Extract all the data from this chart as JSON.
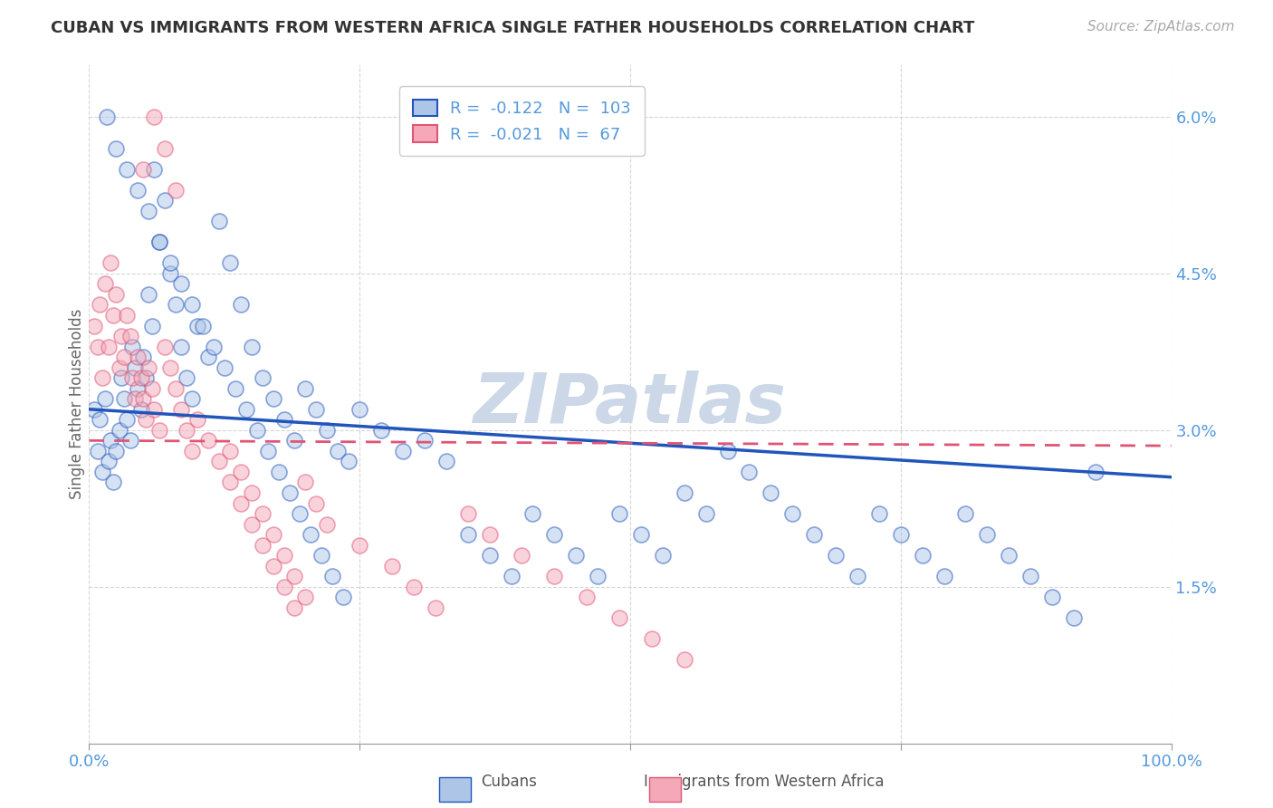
{
  "title": "CUBAN VS IMMIGRANTS FROM WESTERN AFRICA SINGLE FATHER HOUSEHOLDS CORRELATION CHART",
  "source": "Source: ZipAtlas.com",
  "ylabel": "Single Father Households",
  "legend_entries": [
    {
      "label": "Cubans",
      "R": -0.122,
      "N": 103,
      "color": "#adc6e8"
    },
    {
      "label": "Immigrants from Western Africa",
      "R": -0.021,
      "N": 67,
      "color": "#f4a8b8"
    }
  ],
  "xmin": 0.0,
  "xmax": 1.0,
  "ymin": 0.0,
  "ymax": 0.065,
  "yticks": [
    0.0,
    0.015,
    0.03,
    0.045,
    0.06
  ],
  "ytick_labels": [
    "",
    "1.5%",
    "3.0%",
    "4.5%",
    "6.0%"
  ],
  "xticks": [
    0.0,
    0.25,
    0.5,
    0.75,
    1.0
  ],
  "xtick_labels": [
    "0.0%",
    "",
    "",
    "",
    "100.0%"
  ],
  "blue_line_color": "#2255bb",
  "pink_line_color": "#e05575",
  "tick_color": "#5599dd",
  "watermark_text": "ZIPatlas",
  "watermark_color": "#ccd8e8",
  "background_color": "#ffffff",
  "grid_color": "#cccccc",
  "title_color": "#333333",
  "axis_label_color": "#666666",
  "cubans_x": [
    0.005,
    0.008,
    0.01,
    0.012,
    0.015,
    0.018,
    0.02,
    0.022,
    0.025,
    0.028,
    0.03,
    0.032,
    0.035,
    0.038,
    0.04,
    0.042,
    0.045,
    0.048,
    0.05,
    0.052,
    0.055,
    0.058,
    0.06,
    0.065,
    0.07,
    0.075,
    0.08,
    0.085,
    0.09,
    0.095,
    0.1,
    0.11,
    0.12,
    0.13,
    0.14,
    0.15,
    0.16,
    0.17,
    0.18,
    0.19,
    0.2,
    0.21,
    0.22,
    0.23,
    0.24,
    0.25,
    0.27,
    0.29,
    0.31,
    0.33,
    0.35,
    0.37,
    0.39,
    0.41,
    0.43,
    0.45,
    0.47,
    0.49,
    0.51,
    0.53,
    0.55,
    0.57,
    0.59,
    0.61,
    0.63,
    0.65,
    0.67,
    0.69,
    0.71,
    0.73,
    0.75,
    0.77,
    0.79,
    0.81,
    0.83,
    0.85,
    0.87,
    0.89,
    0.91,
    0.93,
    0.016,
    0.025,
    0.035,
    0.045,
    0.055,
    0.065,
    0.075,
    0.085,
    0.095,
    0.105,
    0.115,
    0.125,
    0.135,
    0.145,
    0.155,
    0.165,
    0.175,
    0.185,
    0.195,
    0.205,
    0.215,
    0.225,
    0.235
  ],
  "cubans_y": [
    0.032,
    0.028,
    0.031,
    0.026,
    0.033,
    0.027,
    0.029,
    0.025,
    0.028,
    0.03,
    0.035,
    0.033,
    0.031,
    0.029,
    0.038,
    0.036,
    0.034,
    0.032,
    0.037,
    0.035,
    0.043,
    0.04,
    0.055,
    0.048,
    0.052,
    0.045,
    0.042,
    0.038,
    0.035,
    0.033,
    0.04,
    0.037,
    0.05,
    0.046,
    0.042,
    0.038,
    0.035,
    0.033,
    0.031,
    0.029,
    0.034,
    0.032,
    0.03,
    0.028,
    0.027,
    0.032,
    0.03,
    0.028,
    0.029,
    0.027,
    0.02,
    0.018,
    0.016,
    0.022,
    0.02,
    0.018,
    0.016,
    0.022,
    0.02,
    0.018,
    0.024,
    0.022,
    0.028,
    0.026,
    0.024,
    0.022,
    0.02,
    0.018,
    0.016,
    0.022,
    0.02,
    0.018,
    0.016,
    0.022,
    0.02,
    0.018,
    0.016,
    0.014,
    0.012,
    0.026,
    0.06,
    0.057,
    0.055,
    0.053,
    0.051,
    0.048,
    0.046,
    0.044,
    0.042,
    0.04,
    0.038,
    0.036,
    0.034,
    0.032,
    0.03,
    0.028,
    0.026,
    0.024,
    0.022,
    0.02,
    0.018,
    0.016,
    0.014
  ],
  "western_africa_x": [
    0.005,
    0.008,
    0.01,
    0.012,
    0.015,
    0.018,
    0.02,
    0.022,
    0.025,
    0.028,
    0.03,
    0.032,
    0.035,
    0.038,
    0.04,
    0.042,
    0.045,
    0.048,
    0.05,
    0.052,
    0.055,
    0.058,
    0.06,
    0.065,
    0.07,
    0.075,
    0.08,
    0.085,
    0.09,
    0.095,
    0.1,
    0.11,
    0.12,
    0.13,
    0.14,
    0.15,
    0.16,
    0.17,
    0.18,
    0.19,
    0.2,
    0.21,
    0.22,
    0.25,
    0.28,
    0.3,
    0.32,
    0.35,
    0.37,
    0.4,
    0.43,
    0.46,
    0.49,
    0.52,
    0.55,
    0.13,
    0.14,
    0.15,
    0.16,
    0.17,
    0.18,
    0.19,
    0.2,
    0.05,
    0.06,
    0.07,
    0.08
  ],
  "western_africa_y": [
    0.04,
    0.038,
    0.042,
    0.035,
    0.044,
    0.038,
    0.046,
    0.041,
    0.043,
    0.036,
    0.039,
    0.037,
    0.041,
    0.039,
    0.035,
    0.033,
    0.037,
    0.035,
    0.033,
    0.031,
    0.036,
    0.034,
    0.032,
    0.03,
    0.038,
    0.036,
    0.034,
    0.032,
    0.03,
    0.028,
    0.031,
    0.029,
    0.027,
    0.025,
    0.023,
    0.021,
    0.019,
    0.017,
    0.015,
    0.013,
    0.025,
    0.023,
    0.021,
    0.019,
    0.017,
    0.015,
    0.013,
    0.022,
    0.02,
    0.018,
    0.016,
    0.014,
    0.012,
    0.01,
    0.008,
    0.028,
    0.026,
    0.024,
    0.022,
    0.02,
    0.018,
    0.016,
    0.014,
    0.055,
    0.06,
    0.057,
    0.053
  ],
  "trend_blue_x0": 0.0,
  "trend_blue_y0": 0.032,
  "trend_blue_x1": 1.0,
  "trend_blue_y1": 0.0255,
  "trend_pink_x0": 0.0,
  "trend_pink_y0": 0.029,
  "trend_pink_x1": 1.0,
  "trend_pink_y1": 0.0285
}
